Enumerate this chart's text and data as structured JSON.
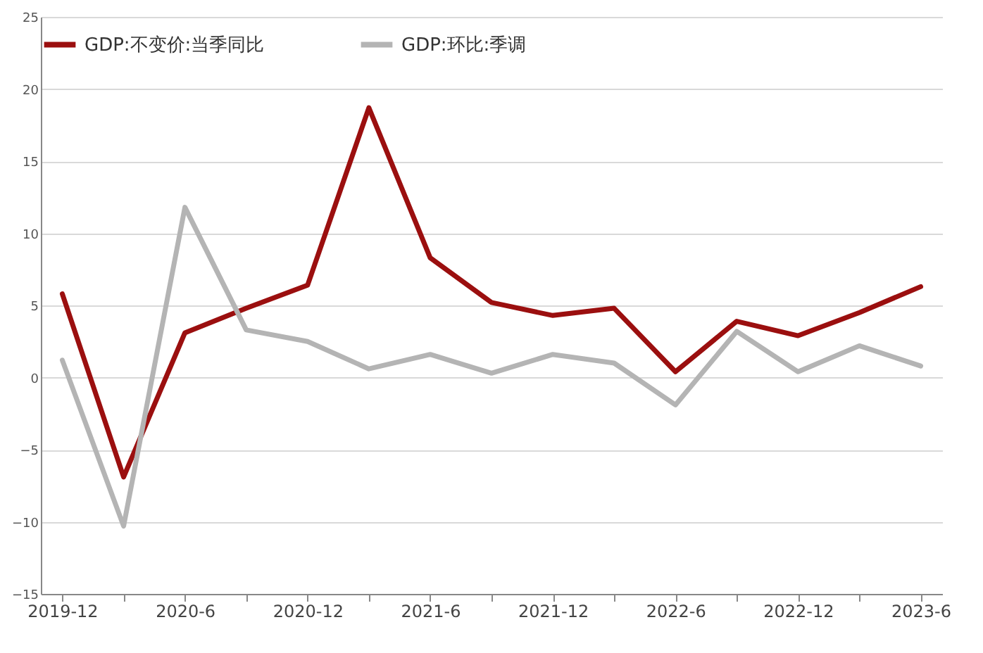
{
  "chart_data": {
    "type": "line",
    "categories": [
      "2019-12",
      null,
      "2020-6",
      null,
      "2020-12",
      null,
      "2021-6",
      null,
      "2021-12",
      null,
      "2022-6",
      null,
      "2022-12",
      null,
      "2023-6"
    ],
    "series": [
      {
        "name": "GDP:不变价:当季同比",
        "color": "#9b0f0f",
        "values": [
          5.8,
          -6.9,
          3.1,
          4.8,
          6.4,
          18.7,
          8.3,
          5.2,
          4.3,
          4.8,
          0.4,
          3.9,
          2.9,
          4.5,
          6.3
        ]
      },
      {
        "name": "GDP:环比:季调",
        "color": "#b4b4b4",
        "values": [
          1.2,
          -10.3,
          11.8,
          3.3,
          2.5,
          0.6,
          1.6,
          0.3,
          1.6,
          1.0,
          -1.9,
          3.2,
          0.4,
          2.2,
          0.8
        ]
      }
    ],
    "ylim": [
      -15,
      25
    ],
    "yticks": [
      -15,
      -10,
      -5,
      0,
      5,
      10,
      15,
      20,
      25
    ],
    "grid": "y",
    "legend": "top",
    "line_style": "solid",
    "marker": "none"
  }
}
